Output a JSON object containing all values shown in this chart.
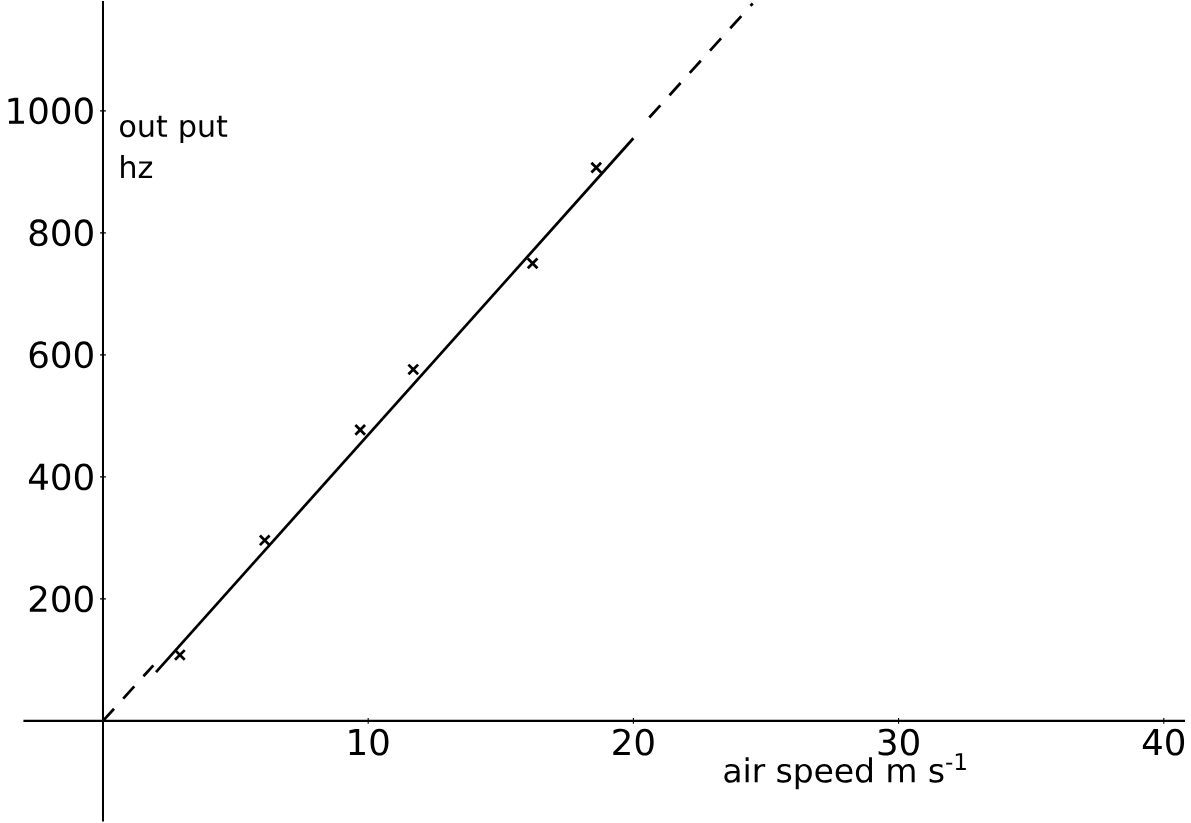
{
  "chart_data": {
    "type": "scatter",
    "xlabel": "air speed      m s$^{-1}$",
    "ylabel": "out put hz",
    "xlim": [
      -3,
      40.8
    ],
    "ylim": [
      -165,
      1180
    ],
    "xticks": [
      10,
      20,
      30,
      40
    ],
    "yticks": [
      200,
      400,
      600,
      800,
      1000
    ],
    "grid": false,
    "series": [
      {
        "marker": "cross",
        "color": "#000000",
        "x": [
          2.9,
          6.1,
          9.7,
          11.7,
          16.2,
          18.6
        ],
        "values": [
          108,
          296,
          477,
          576,
          750,
          907
        ]
      },
      {
        "type": "line",
        "marker": "none",
        "line_style": "solid",
        "color": "#000000",
        "x": [
          2.0,
          20.0
        ],
        "values": [
          80,
          955
        ]
      },
      {
        "type": "line",
        "marker": "none",
        "line_style": "dashed",
        "color": "#000000",
        "x": [
          0,
          1.9
        ],
        "values": [
          0,
          91
        ]
      },
      {
        "type": "line",
        "marker": "none",
        "line_style": "dashed",
        "color": "#000000",
        "x": [
          20.6,
          24.5
        ],
        "values": [
          989,
          1176
        ]
      }
    ]
  }
}
